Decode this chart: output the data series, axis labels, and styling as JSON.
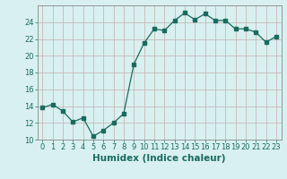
{
  "x": [
    0,
    1,
    2,
    3,
    4,
    5,
    6,
    7,
    8,
    9,
    10,
    11,
    12,
    13,
    14,
    15,
    16,
    17,
    18,
    19,
    20,
    21,
    22,
    23
  ],
  "y": [
    13.8,
    14.2,
    13.4,
    12.1,
    12.6,
    10.4,
    11.1,
    12.0,
    13.1,
    19.0,
    21.5,
    23.2,
    23.0,
    24.2,
    25.1,
    24.3,
    25.0,
    24.2,
    24.2,
    23.2,
    23.2,
    22.8,
    21.6,
    22.3
  ],
  "xlabel": "Humidex (Indice chaleur)",
  "xlim": [
    -0.5,
    23.5
  ],
  "ylim": [
    10,
    26
  ],
  "yticks": [
    10,
    12,
    14,
    16,
    18,
    20,
    22,
    24
  ],
  "xticks": [
    0,
    1,
    2,
    3,
    4,
    5,
    6,
    7,
    8,
    9,
    10,
    11,
    12,
    13,
    14,
    15,
    16,
    17,
    18,
    19,
    20,
    21,
    22,
    23
  ],
  "line_color": "#1a6b5e",
  "marker": "s",
  "marker_size": 2.5,
  "bg_color": "#d8f0f0",
  "grid_color": "#c8b8b8",
  "spine_color": "#888888",
  "label_fontsize": 7,
  "tick_fontsize": 6.0,
  "xlabel_fontsize": 7.5
}
